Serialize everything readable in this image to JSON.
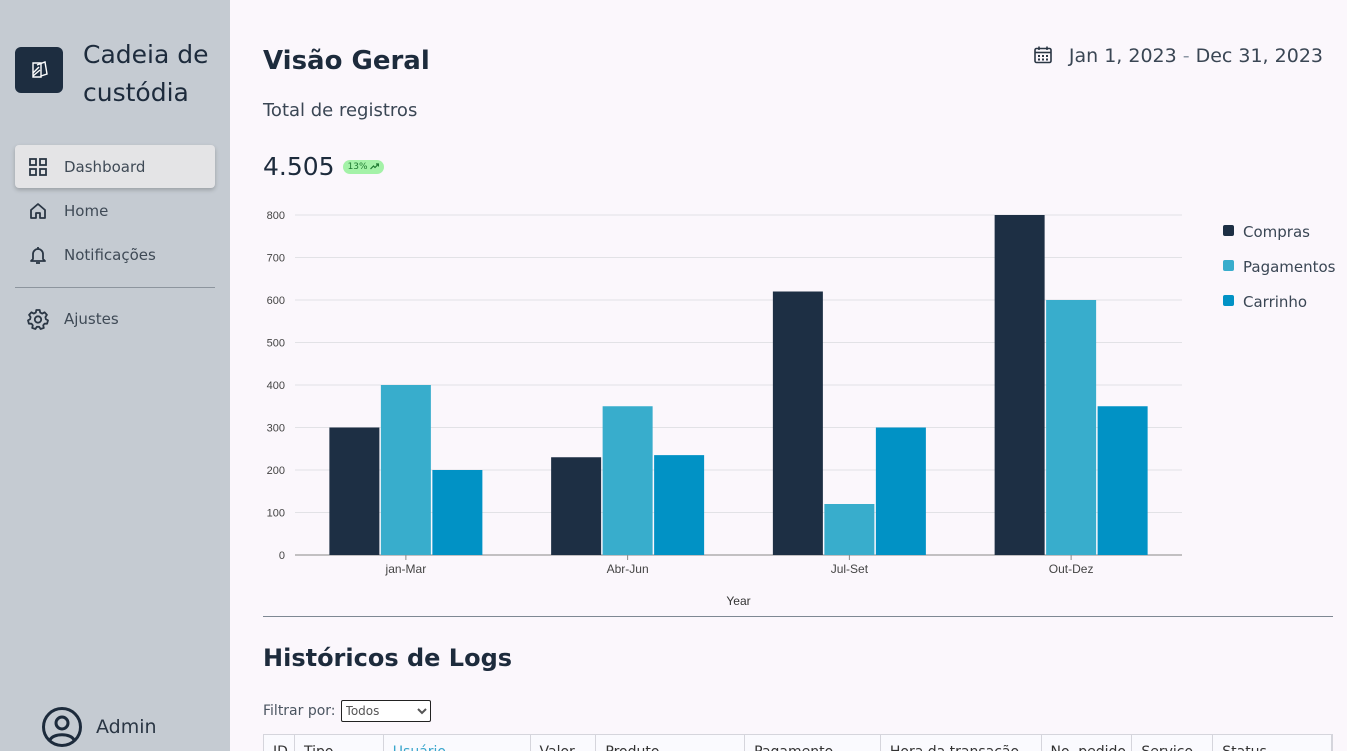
{
  "sidebar": {
    "brand": {
      "name": "Cadeia de custódia",
      "icon": "app-logo-icon"
    },
    "items": [
      {
        "label": "Dashboard",
        "icon": "grid-icon",
        "active": true
      },
      {
        "label": "Home",
        "icon": "home-icon",
        "active": false
      },
      {
        "label": "Notificações",
        "icon": "bell-icon",
        "active": false
      },
      {
        "label": "Ajustes",
        "icon": "gear-icon",
        "active": false
      }
    ],
    "user": {
      "name": "Admin",
      "icon": "user-circle-icon"
    }
  },
  "header": {
    "title": "Visão Geral",
    "date_start": "Jan 1, 2023",
    "date_sep": "-",
    "date_end": "Dec 31, 2023",
    "date_icon": "calendar-icon"
  },
  "summary": {
    "subtitle": "Total de registros",
    "total": "4.505",
    "badge": "13%",
    "badge_icon": "trend-up-icon"
  },
  "chart_data": {
    "type": "bar",
    "categories": [
      "jan-Mar",
      "Abr-Jun",
      "Jul-Set",
      "Out-Dez"
    ],
    "series": [
      {
        "name": "Compras",
        "values": [
          300,
          230,
          620,
          800
        ],
        "color": "#1d2f44"
      },
      {
        "name": "Pagamentos",
        "values": [
          400,
          350,
          120,
          600
        ],
        "color": "#38adcc"
      },
      {
        "name": "Carrinho",
        "values": [
          200,
          235,
          300,
          350
        ],
        "color": "#0192c5"
      }
    ],
    "xlabel": "Year",
    "ylabel": "",
    "ylim": [
      0,
      800
    ],
    "yticks": [
      "0",
      "100",
      "200",
      "300",
      "400",
      "500",
      "600",
      "700",
      "800"
    ],
    "grid": true,
    "legend": "right"
  },
  "logs": {
    "title": "Históricos de Logs",
    "filter_label": "Filtrar por:",
    "filter_value": "Todos",
    "columns": [
      "ID",
      "Tipo",
      "Usuário",
      "Valor",
      "Produto",
      "Pagamento",
      "Hora da transação",
      "No. pedido",
      "Serviço",
      "Status"
    ]
  },
  "colors": {
    "sidebar_bg": "#c5cbd2",
    "brand_bg": "#1d2d40",
    "page_bg": "#fbf7fc",
    "badge_bg": "#a4f2a8"
  }
}
